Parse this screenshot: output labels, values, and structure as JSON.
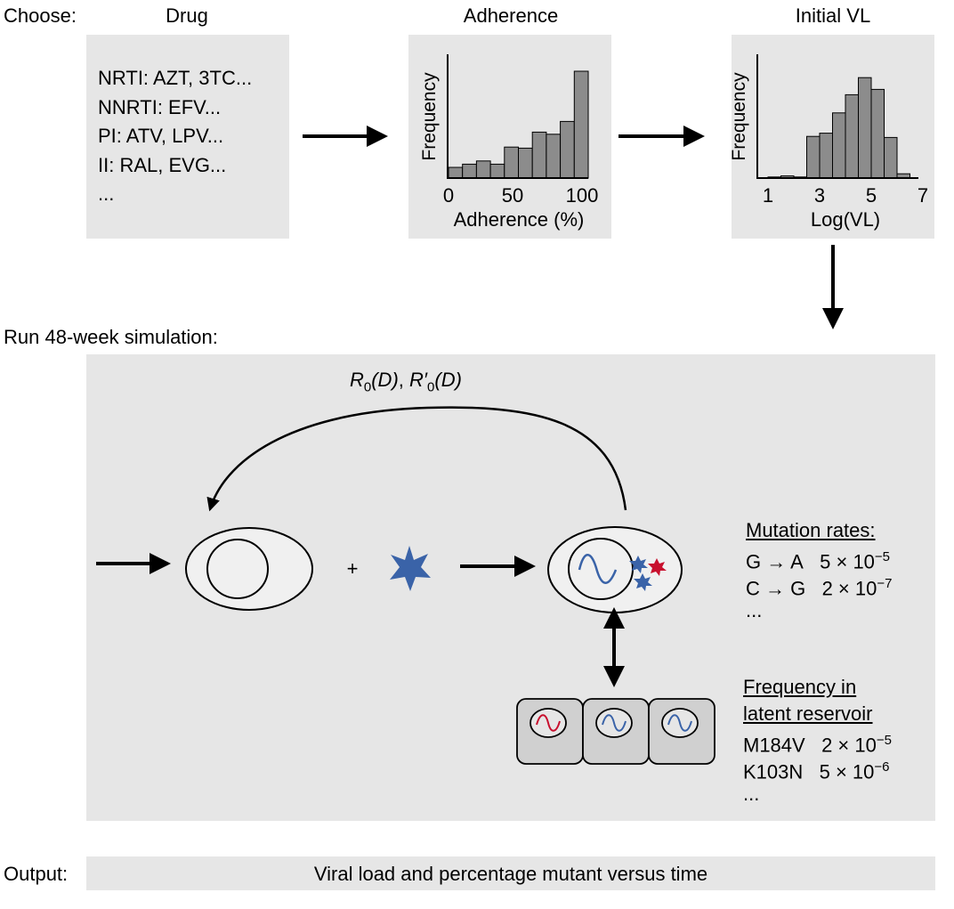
{
  "header": {
    "choose_label": "Choose:",
    "drug_title": "Drug",
    "adherence_title": "Adherence",
    "initial_vl_title": "Initial VL"
  },
  "drug_list": [
    "NRTI: AZT, 3TC...",
    "NNRTI: EFV...",
    "PI: ATV, LPV...",
    "II: RAL, EVG...",
    "..."
  ],
  "adherence_hist": {
    "ylabel": "Frequency",
    "xlabel": "Adherence (%)",
    "ticks": [
      "0",
      "50",
      "100"
    ],
    "xlim": [
      0,
      100
    ],
    "bin_width": 10,
    "values": [
      0.1,
      0.13,
      0.16,
      0.13,
      0.29,
      0.28,
      0.43,
      0.41,
      0.53,
      1.0
    ]
  },
  "vl_hist": {
    "ylabel": "Frequency",
    "xlabel": "Log(VL)",
    "ticks": [
      "1",
      "3",
      "5",
      "7"
    ],
    "xlim": [
      1,
      7
    ],
    "bin_width": 0.5,
    "values": [
      0.01,
      0.02,
      0.01,
      0.39,
      0.42,
      0.61,
      0.78,
      0.94,
      0.83,
      0.38,
      0.04
    ]
  },
  "simulation": {
    "title": "Run 48-week simulation:",
    "feedback_label_r0": "R",
    "feedback_label_sub": "0",
    "feedback_label_d": "(D)",
    "feedback_sep": ", ",
    "feedback_label_r0p": "R′",
    "plus": "+",
    "mutation_title": "Mutation rates:",
    "mutations": [
      {
        "pair": "G → A",
        "mant": "5 × 10",
        "exp": "−5"
      },
      {
        "pair": "C → G",
        "mant": "2 × 10",
        "exp": "−7"
      }
    ],
    "mutation_more": "...",
    "reservoir_title_1": "Frequency in",
    "reservoir_title_2": "latent reservoir",
    "reservoir": [
      {
        "mut": "M184V",
        "mant": "2 × 10",
        "exp": "−5"
      },
      {
        "mut": "K103N",
        "mant": "5 × 10",
        "exp": "−6"
      }
    ],
    "reservoir_more": "..."
  },
  "output": {
    "label": "Output:",
    "text": "Viral load and percentage mutant versus time"
  },
  "colors": {
    "panel": "#e6e6e6",
    "bar": "#8c8c8c",
    "virus_blue": "#3a63a8",
    "virus_red": "#c8102e",
    "cell": "#f0f0f0",
    "reservoir_cell": "#d0d0d0"
  }
}
